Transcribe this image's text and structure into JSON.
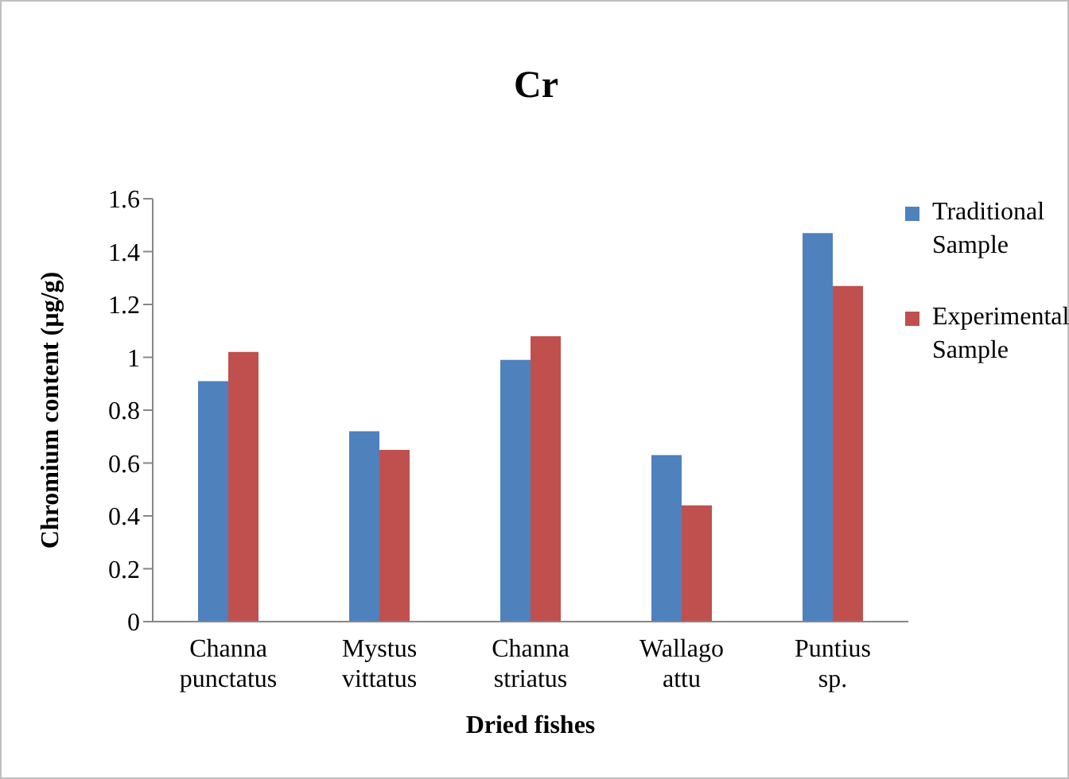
{
  "chart_data": {
    "type": "bar",
    "title": "Cr",
    "xlabel": "Dried fishes",
    "ylabel": "Chromium content (µg/g)",
    "categories": [
      "Channa punctatus",
      "Mystus vittatus",
      "Channa striatus",
      "Wallago attu",
      "Puntius sp."
    ],
    "series": [
      {
        "name": "Traditional Sample",
        "color": "#4f81bd",
        "values": [
          0.91,
          0.72,
          0.99,
          0.63,
          1.47
        ]
      },
      {
        "name": "Experimental Sample",
        "color": "#c0504d",
        "values": [
          1.02,
          0.65,
          1.08,
          0.44,
          1.27
        ]
      }
    ],
    "ylim": [
      0,
      1.6
    ],
    "yticks": [
      0,
      0.2,
      0.4,
      0.6,
      0.8,
      1,
      1.2,
      1.4,
      1.6
    ],
    "grid": false,
    "legend": "right"
  }
}
